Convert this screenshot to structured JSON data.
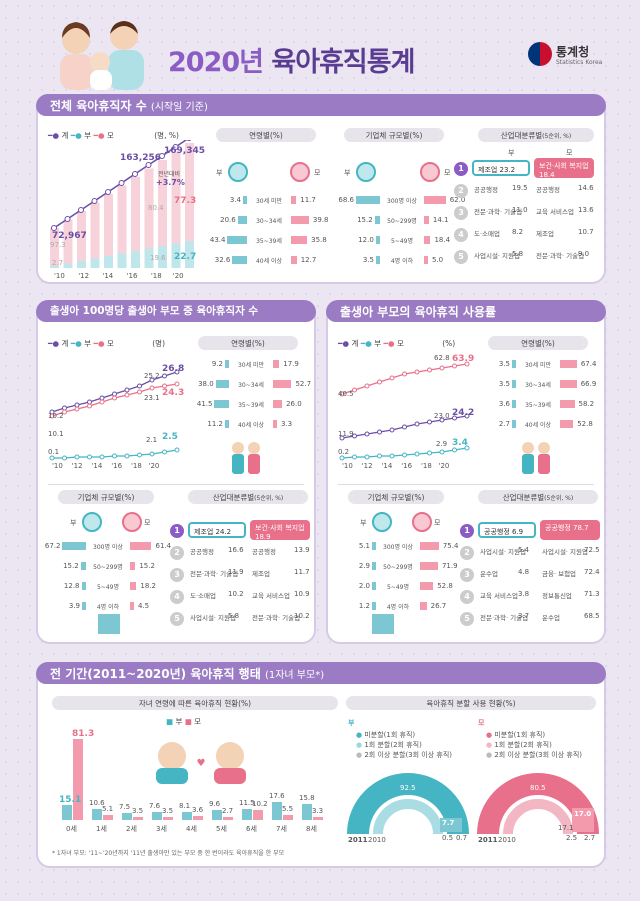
{
  "header": {
    "title_year": "2020년",
    "title_main": "육아휴직통계",
    "logo_kr": "통계청",
    "logo_en": "Statistics Korea"
  },
  "s1": {
    "title": "전체 육아휴직자 수",
    "title_note": "(시작일 기준)",
    "legend": {
      "total": "계",
      "father": "부",
      "mother": "모",
      "unit": "(명, %)"
    },
    "line_labels": [
      "72,967",
      "163,256",
      "169,345"
    ],
    "yoy": "전년대비",
    "yoy_val": "+3.7%",
    "bar_labels": {
      "m1": "97.3",
      "m2": "80.4",
      "m3": "77.3",
      "f1": "2.7",
      "f2": "19.6",
      "f3": "22.7"
    },
    "years": [
      "'10",
      "'12",
      "'14",
      "'16",
      "'18",
      "'20"
    ],
    "age": {
      "title": "연령별(%)",
      "father": "부",
      "mother": "모",
      "rows": [
        {
          "label": "30세 미만",
          "f": "3.4",
          "m": "11.7"
        },
        {
          "label": "30~34세",
          "f": "20.6",
          "m": "39.8"
        },
        {
          "label": "35~39세",
          "f": "43.4",
          "m": "35.8"
        },
        {
          "label": "40세 이상",
          "f": "32.6",
          "m": "12.7"
        }
      ]
    },
    "size": {
      "title": "기업체 규모별(%)",
      "father": "부",
      "mother": "모",
      "rows": [
        {
          "label": "300명 이상",
          "f": "68.6",
          "m": "62.0"
        },
        {
          "label": "50~299명",
          "f": "15.2",
          "m": "14.1"
        },
        {
          "label": "5~49명",
          "f": "12.0",
          "m": "18.4"
        },
        {
          "label": "4명 이하",
          "f": "3.5",
          "m": "5.0"
        }
      ]
    },
    "ind": {
      "title": "산업대분류별",
      "title_note": "(5순위, %)",
      "father": "부",
      "mother": "모",
      "rows": [
        {
          "rank": "1",
          "f": "제조업",
          "fv": "23.2",
          "m": "보건·사회 복지업",
          "mv": "18.4"
        },
        {
          "rank": "2",
          "f": "공공행정",
          "fv": "19.5",
          "m": "공공행정",
          "mv": "14.6"
        },
        {
          "rank": "3",
          "f": "전문·과학· 기술업",
          "fv": "11.0",
          "m": "교육 서비스업",
          "mv": "13.6"
        },
        {
          "rank": "4",
          "f": "도·소매업",
          "fv": "8.2",
          "m": "제조업",
          "mv": "10.7"
        },
        {
          "rank": "5",
          "f": "사업시설· 지원업",
          "fv": "5.8",
          "m": "전문·과학· 기술업",
          "mv": "9.0"
        }
      ]
    }
  },
  "s2": {
    "title": "출생아 100명당 출생아 부모 중 육아휴직자 수",
    "legend": {
      "total": "계",
      "father": "부",
      "mother": "모",
      "unit": "(명)"
    },
    "labels": {
      "t1": "10.2",
      "t2": "25.2",
      "t3": "26.8",
      "m1": "10.1",
      "m2": "23.1",
      "m3": "24.3",
      "f1": "0.1",
      "f2": "2.1",
      "f3": "2.5"
    },
    "years": [
      "'10",
      "'12",
      "'14",
      "'16",
      "'18",
      "'20"
    ],
    "age": {
      "title": "연령별(%)",
      "rows": [
        {
          "label": "30세 미만",
          "f": "9.2",
          "m": "17.9"
        },
        {
          "label": "30~34세",
          "f": "38.0",
          "m": "52.7"
        },
        {
          "label": "35~39세",
          "f": "41.5",
          "m": "26.0"
        },
        {
          "label": "40세 이상",
          "f": "11.2",
          "m": "3.3"
        }
      ]
    },
    "size": {
      "title": "기업체 규모별(%)",
      "father": "부",
      "mother": "모",
      "rows": [
        {
          "label": "300명 이상",
          "f": "67.2",
          "m": "61.4"
        },
        {
          "label": "50~299명",
          "f": "15.2",
          "m": "15.2"
        },
        {
          "label": "5~49명",
          "f": "12.8",
          "m": "18.2"
        },
        {
          "label": "4명 이하",
          "f": "3.9",
          "m": "4.5"
        }
      ]
    },
    "ind": {
      "title": "산업대분류별",
      "title_note": "(5순위, %)",
      "father": "부",
      "mother": "모",
      "rows": [
        {
          "rank": "1",
          "f": "제조업",
          "fv": "24.2",
          "m": "보건·사회 복지업",
          "mv": "18.9"
        },
        {
          "rank": "2",
          "f": "공공행정",
          "fv": "16.6",
          "m": "공공행정",
          "mv": "13.9"
        },
        {
          "rank": "3",
          "f": "전문·과학· 기술업",
          "fv": "11.9",
          "m": "제조업",
          "mv": "11.7"
        },
        {
          "rank": "4",
          "f": "도·소매업",
          "fv": "10.2",
          "m": "교육 서비스업",
          "mv": "10.9"
        },
        {
          "rank": "5",
          "f": "사업시설· 지원업",
          "fv": "5.8",
          "m": "전문·과학· 기술업",
          "mv": "10.2"
        }
      ]
    }
  },
  "s3": {
    "title": "출생아 부모의 육아휴직 사용률",
    "legend": {
      "total": "계",
      "father": "부",
      "mother": "모",
      "unit": "(%)"
    },
    "labels": {
      "m1": "40.5",
      "m2": "62.8",
      "m3": "63.9",
      "t1": "11.9",
      "t2": "23.0",
      "t3": "24.2",
      "f1": "0.2",
      "f2": "2.9",
      "f3": "3.4"
    },
    "years": [
      "'10",
      "'12",
      "'14",
      "'16",
      "'18",
      "'20"
    ],
    "age": {
      "title": "연령별(%)",
      "rows": [
        {
          "label": "30세 미만",
          "f": "3.5",
          "m": "67.4"
        },
        {
          "label": "30~34세",
          "f": "3.5",
          "m": "66.9"
        },
        {
          "label": "35~39세",
          "f": "3.6",
          "m": "58.2"
        },
        {
          "label": "40세 이상",
          "f": "2.7",
          "m": "52.8"
        }
      ]
    },
    "size": {
      "title": "기업체 규모별(%)",
      "father": "부",
      "mother": "모",
      "rows": [
        {
          "label": "300명 이상",
          "f": "5.1",
          "m": "75.4"
        },
        {
          "label": "50~299명",
          "f": "2.9",
          "m": "71.9"
        },
        {
          "label": "5~49명",
          "f": "2.0",
          "m": "52.8"
        },
        {
          "label": "4명 이하",
          "f": "1.2",
          "m": "26.7"
        }
      ]
    },
    "ind": {
      "title": "산업대분류별",
      "title_note": "(5순위, %)",
      "father": "부",
      "mother": "모",
      "rows": [
        {
          "rank": "1",
          "f": "공공행정",
          "fv": "6.9",
          "m": "공공행정",
          "mv": "78.7"
        },
        {
          "rank": "2",
          "f": "사업시설· 지원업",
          "fv": "5.4",
          "m": "사업시설· 지원업",
          "mv": "72.5"
        },
        {
          "rank": "3",
          "f": "운수업",
          "fv": "4.8",
          "m": "금융· 보험업",
          "mv": "72.4"
        },
        {
          "rank": "4",
          "f": "교육 서비스업",
          "fv": "3.8",
          "m": "정보통신업",
          "mv": "71.3"
        },
        {
          "rank": "5",
          "f": "전문·과학· 기술업",
          "fv": "3.7",
          "m": "운수업",
          "mv": "68.5"
        }
      ]
    }
  },
  "s4": {
    "title": "전 기간(2011~2020년) 육아휴직 행태",
    "title_note": "(1자녀 부모*)",
    "child_title": "자녀 연령에 따른 육아휴직 현황(%)",
    "legend": {
      "father": "부",
      "mother": "모"
    },
    "ages": [
      {
        "label": "0세",
        "f": "15.1",
        "m": "81.3"
      },
      {
        "label": "1세",
        "f": "10.6",
        "m": "5.1"
      },
      {
        "label": "2세",
        "f": "7.5",
        "m": "3.5"
      },
      {
        "label": "3세",
        "f": "7.6",
        "m": "3.5"
      },
      {
        "label": "4세",
        "f": "8.1",
        "m": "3.6"
      },
      {
        "label": "5세",
        "f": "9.6",
        "m": "2.7"
      },
      {
        "label": "6세",
        "f": "11.5",
        "m": "10.2"
      },
      {
        "label": "7세",
        "f": "17.6",
        "m": "5.5"
      },
      {
        "label": "8세",
        "f": "15.8",
        "m": "3.3"
      }
    ],
    "footnote": "* 1자녀 부모: '11~'20년까지 '11년 출생아만 있는 부모 중 한 번이라도 육아휴직을 한 부모",
    "split_title": "육아휴직 분할 사용 현황(%)",
    "father": {
      "label": "부",
      "opts": [
        "미분할(1회 휴직)",
        "1회 분할(2회 휴직)",
        "2회 이상 분할(3회 이상 휴직)"
      ],
      "v2011": "91.6",
      "v2010": "92.5",
      "s1": "7.7",
      "s2": "0.5",
      "s3": "0.7",
      "y1": "2011",
      "y2": "2010"
    },
    "mother": {
      "label": "모",
      "opts": [
        "미분할(1회 휴직)",
        "1회 분할(2회 휴직)",
        "2회 이상 분할(3회 이상 휴직)"
      ],
      "v2011": "80.3",
      "v2010": "80.5",
      "s1": "17.0",
      "s2": "17.1",
      "s3": "2.5",
      "s4": "2.7",
      "y1": "2011",
      "y2": "2010"
    }
  },
  "colors": {
    "purple": "#6b4ea5",
    "teal": "#45b5c4",
    "pink": "#e8708a",
    "header": "#9a7bc4"
  }
}
